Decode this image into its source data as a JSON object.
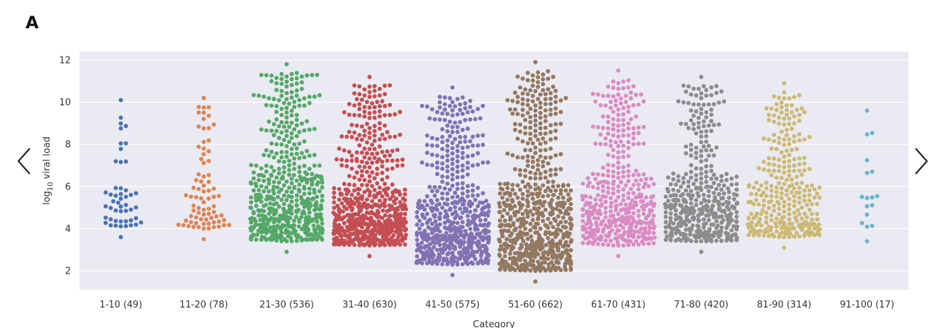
{
  "panel_label": "A",
  "nav": {
    "prev_icon": "chevron-left-icon",
    "next_icon": "chevron-right-icon"
  },
  "chart_data": {
    "type": "swarm",
    "title": "",
    "ylabel_main": "log",
    "ylabel_sub": "10",
    "ylabel_rest": " viral load",
    "xlabel": "Category",
    "ylim": [
      1.1,
      12.4
    ],
    "yticks": [
      2,
      4,
      6,
      8,
      10,
      12
    ],
    "grid": true,
    "background": "#eaeaf2",
    "categories": [
      {
        "label": "1-10 (49)",
        "n": 49,
        "color": "#4c72b0",
        "min": 3.6,
        "max": 10.1,
        "peak": 4.8,
        "mass_low": 0.75
      },
      {
        "label": "11-20 (78)",
        "n": 78,
        "color": "#dd8452",
        "min": 3.5,
        "max": 10.2,
        "peak": 4.8,
        "mass_low": 0.55
      },
      {
        "label": "21-30 (536)",
        "n": 536,
        "color": "#55a868",
        "min": 2.9,
        "max": 11.8,
        "peak": 5.5,
        "mass_low": 0.55
      },
      {
        "label": "31-40 (630)",
        "n": 630,
        "color": "#c44e52",
        "min": 2.7,
        "max": 11.2,
        "peak": 4.8,
        "mass_low": 0.6
      },
      {
        "label": "41-50 (575)",
        "n": 575,
        "color": "#8172b3",
        "min": 1.8,
        "max": 10.7,
        "peak": 4.5,
        "mass_low": 0.6
      },
      {
        "label": "51-60 (662)",
        "n": 662,
        "color": "#937860",
        "min": 1.5,
        "max": 11.9,
        "peak": 5.0,
        "mass_low": 0.55
      },
      {
        "label": "61-70 (431)",
        "n": 431,
        "color": "#da8bc3",
        "min": 2.7,
        "max": 11.5,
        "peak": 5.5,
        "mass_low": 0.55
      },
      {
        "label": "71-80 (420)",
        "n": 420,
        "color": "#8c8c8c",
        "min": 2.9,
        "max": 11.2,
        "peak": 5.5,
        "mass_low": 0.6
      },
      {
        "label": "81-90 (314)",
        "n": 314,
        "color": "#ccb974",
        "min": 3.1,
        "max": 10.9,
        "peak": 5.8,
        "mass_low": 0.55
      },
      {
        "label": "91-100 (17)",
        "n": 17,
        "color": "#64b5cd",
        "min": 3.4,
        "max": 9.6,
        "peak": 7.0,
        "mass_low": 0.4
      }
    ]
  }
}
